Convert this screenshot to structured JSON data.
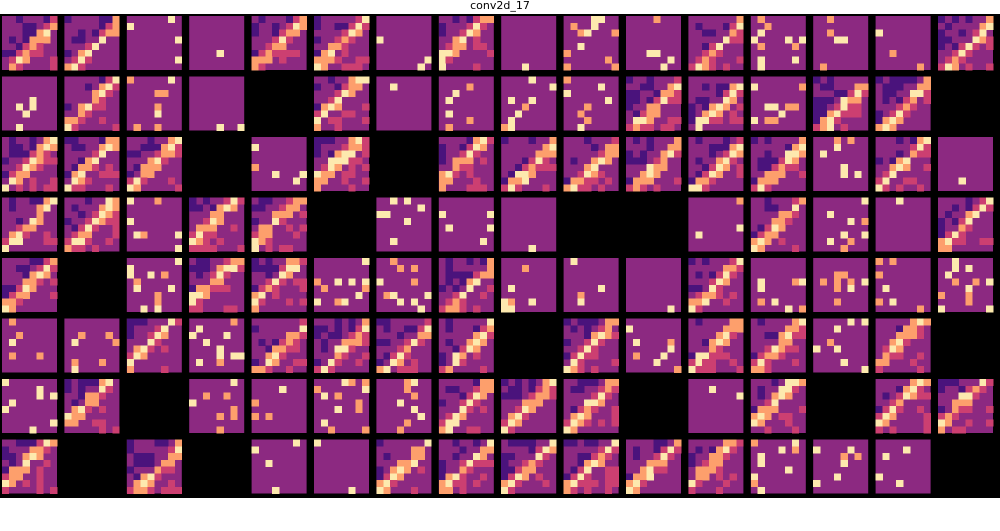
{
  "chart_data": {
    "type": "heatmap",
    "title": "conv2d_17",
    "layout": {
      "rows": 8,
      "cols": 16
    },
    "colormap": "magma",
    "palette": {
      "background": "#000000",
      "dark": "#4a137c",
      "base": "#8c2981",
      "mid": "#cc3f71",
      "orange": "#fd9f6c",
      "bright": "#fde9ae"
    },
    "blank_tiles": [
      [
        1,
        4
      ],
      [
        1,
        15
      ],
      [
        2,
        3
      ],
      [
        2,
        6
      ],
      [
        3,
        5
      ],
      [
        3,
        9
      ],
      [
        3,
        10
      ],
      [
        4,
        1
      ],
      [
        5,
        8
      ],
      [
        5,
        15
      ],
      [
        6,
        2
      ],
      [
        6,
        10
      ],
      [
        6,
        13
      ],
      [
        7,
        1
      ],
      [
        7,
        3
      ],
      [
        7,
        15
      ]
    ],
    "tile_patterns": [
      "diag",
      "diag",
      "sparse",
      "flat",
      "diag",
      "diag",
      "flat",
      "diag",
      "flat",
      "sparse",
      "sparse",
      "diag",
      "sparse",
      "sparse",
      "sparse",
      "diag",
      "sparse",
      "diag",
      "sparse",
      "flat",
      "blank",
      "diag",
      "flat",
      "sparse",
      "sparse",
      "sparse",
      "diag",
      "diag",
      "sparse",
      "diag",
      "diag",
      "blank",
      "diag",
      "diag",
      "diag",
      "blank",
      "sparse",
      "diag",
      "blank",
      "diag",
      "diag",
      "diag",
      "diag",
      "diag",
      "diag",
      "sparse",
      "diag",
      "flat",
      "diag",
      "diag",
      "sparse",
      "diag",
      "diag",
      "blank",
      "sparse",
      "flat",
      "flat",
      "blank",
      "blank",
      "sparse",
      "diag",
      "sparse",
      "flat",
      "diag",
      "diag",
      "blank",
      "sparse",
      "diag",
      "diag",
      "sparse",
      "sparse",
      "diag",
      "sparse",
      "sparse",
      "flat",
      "diag",
      "sparse",
      "sparse",
      "sparse",
      "sparse",
      "sparse",
      "sparse",
      "diag",
      "sparse",
      "diag",
      "diag",
      "diag",
      "diag",
      "blank",
      "diag",
      "sparse",
      "diag",
      "diag",
      "sparse",
      "diag",
      "blank",
      "sparse",
      "diag",
      "blank",
      "sparse",
      "sparse",
      "sparse",
      "sparse",
      "diag",
      "diag",
      "diag",
      "blank",
      "flat",
      "diag",
      "blank",
      "diag",
      "diag",
      "diag",
      "blank",
      "diag",
      "blank",
      "flat",
      "sparse",
      "diag",
      "diag",
      "diag",
      "diag",
      "diag",
      "diag",
      "sparse",
      "sparse",
      "flat",
      "blank"
    ]
  }
}
